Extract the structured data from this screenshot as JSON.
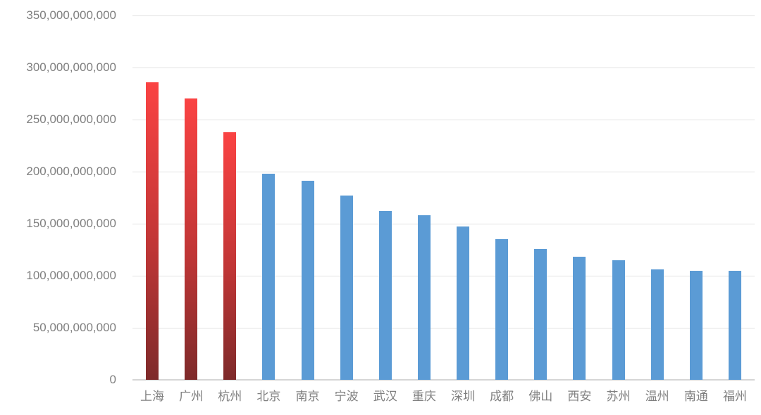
{
  "chart_data": {
    "type": "bar",
    "title": "",
    "xlabel": "",
    "ylabel": "",
    "categories": [
      "上海",
      "广州",
      "杭州",
      "北京",
      "南京",
      "宁波",
      "武汉",
      "重庆",
      "深圳",
      "成都",
      "佛山",
      "西安",
      "苏州",
      "温州",
      "南通",
      "福州"
    ],
    "values": [
      286000000000,
      270000000000,
      238000000000,
      198000000000,
      191000000000,
      177000000000,
      162000000000,
      158000000000,
      147000000000,
      135000000000,
      126000000000,
      118000000000,
      115000000000,
      106000000000,
      105000000000,
      105000000000
    ],
    "highlighted_categories": [
      "上海",
      "广州",
      "杭州"
    ],
    "ylim": [
      0,
      350000000000
    ],
    "ytick_interval": 50000000000,
    "ytick_labels": [
      "0",
      "50,000,000,000",
      "100,000,000,000",
      "150,000,000,000",
      "200,000,000,000",
      "250,000,000,000",
      "300,000,000,000",
      "350,000,000,000"
    ],
    "grid": true,
    "legend": false
  },
  "colors": {
    "bar_blue": "#5b9bd5",
    "bar_red_top": "#fa4343",
    "bar_red_bottom": "#7e2a2a",
    "gridline": "#e2e2e2",
    "axis_line": "#d6d6d6",
    "label_text": "#7f7f7f",
    "background": "#ffffff"
  }
}
